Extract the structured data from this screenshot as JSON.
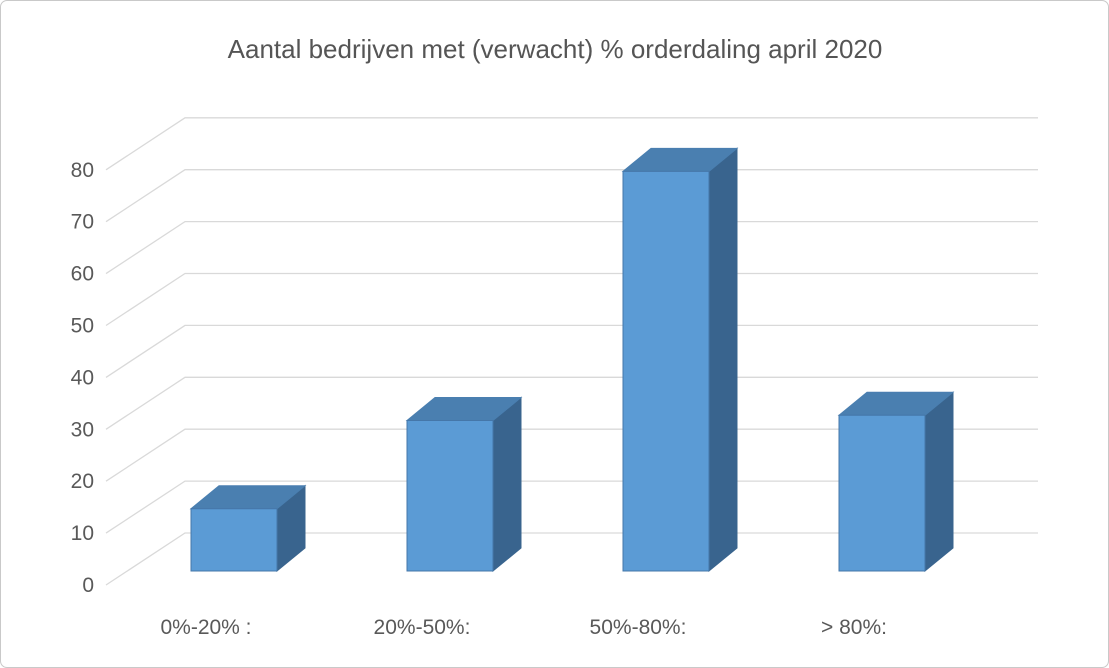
{
  "window": {
    "background": "#ffffff",
    "border_color": "#c9c9c9"
  },
  "chart_data": {
    "type": "bar",
    "variant": "3d-column",
    "title": "Aantal bedrijven met (verwacht) % orderdaling april 2020",
    "categories": [
      "0%-20% :",
      "20%-50%:",
      "50%-80%:",
      "> 80%:"
    ],
    "values": [
      12,
      29,
      77,
      30
    ],
    "xlabel": "",
    "ylabel": "",
    "ylim": [
      0,
      80
    ],
    "ytick_step": 10,
    "yticks": [
      0,
      10,
      20,
      30,
      40,
      50,
      60,
      70,
      80
    ],
    "grid": true,
    "legend": "none",
    "colors": {
      "bar_front": "#5B9BD5",
      "bar_top": "#4A7FB0",
      "bar_side": "#39648E",
      "bar_outline": "#4577A9",
      "gridline": "#D9D9D9",
      "axis_text": "#595959",
      "title_text": "#555555"
    }
  }
}
